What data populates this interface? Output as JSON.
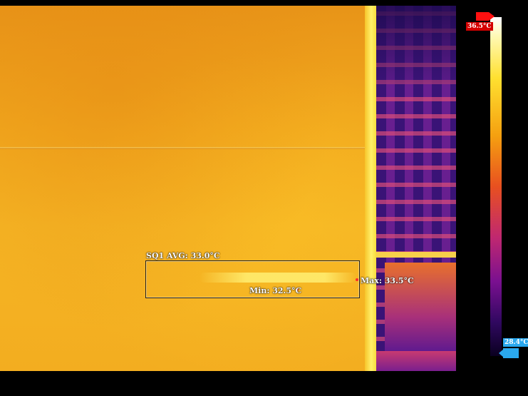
{
  "overlay": {
    "sq1_label": "SQ1 AVG: 33.0°C",
    "max_label": "Max: 33.5°C",
    "min_label": "Min: 32.5°C"
  },
  "scale": {
    "max_value": "36.5°C",
    "min_value": "28.4°C"
  },
  "colors": {
    "max_tag": "#ff1010",
    "min_tag": "#2aa8ee",
    "marker": "#ff2a2a"
  }
}
